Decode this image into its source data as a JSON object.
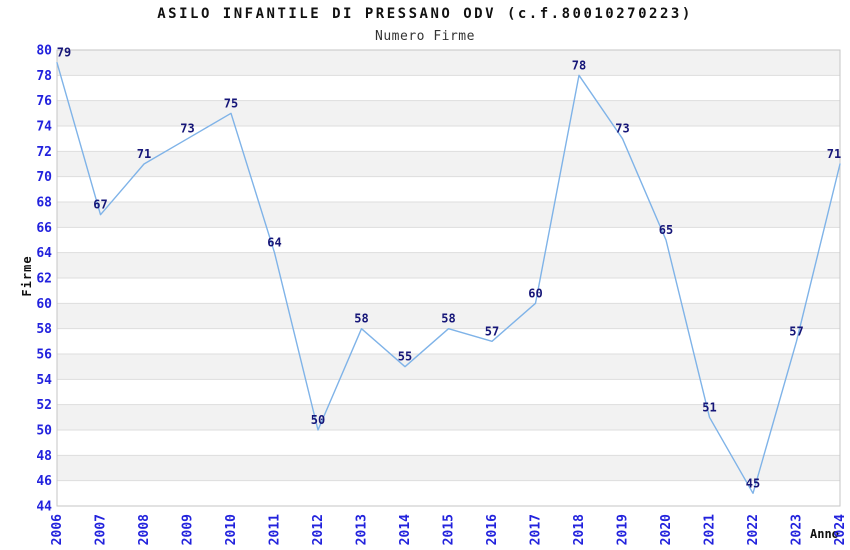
{
  "header": {
    "title": "ASILO INFANTILE DI PRESSANO ODV (c.f.80010270223)",
    "subtitle": "Numero Firme"
  },
  "axes": {
    "y_label": "Firme",
    "x_label": "Anno"
  },
  "chart_data": {
    "type": "line",
    "title": "ASILO INFANTILE DI PRESSANO ODV (c.f.80010270223)",
    "subtitle": "Numero Firme",
    "xlabel": "Anno",
    "ylabel": "Firme",
    "categories": [
      "2006",
      "2007",
      "2008",
      "2009",
      "2010",
      "2011",
      "2012",
      "2013",
      "2014",
      "2015",
      "2016",
      "2017",
      "2018",
      "2019",
      "2020",
      "2021",
      "2022",
      "2023",
      "2024"
    ],
    "series": [
      {
        "name": "Numero Firme",
        "values": [
          79,
          67,
          71,
          73,
          75,
          64,
          50,
          58,
          55,
          58,
          57,
          60,
          78,
          73,
          65,
          51,
          45,
          57,
          71
        ]
      }
    ],
    "ylim": [
      44,
      80
    ],
    "ytick_step": 2,
    "grid": true,
    "band_fill": true,
    "legend": "none",
    "data_labels_visible": true,
    "colors": {
      "line": "#7fb3e8",
      "tick_label": "#2222dd",
      "data_label": "#161678",
      "band": "#f2f2f2",
      "gridline": "#dddddd",
      "plot_border": "#c6c6c6",
      "background": "#ffffff"
    }
  }
}
